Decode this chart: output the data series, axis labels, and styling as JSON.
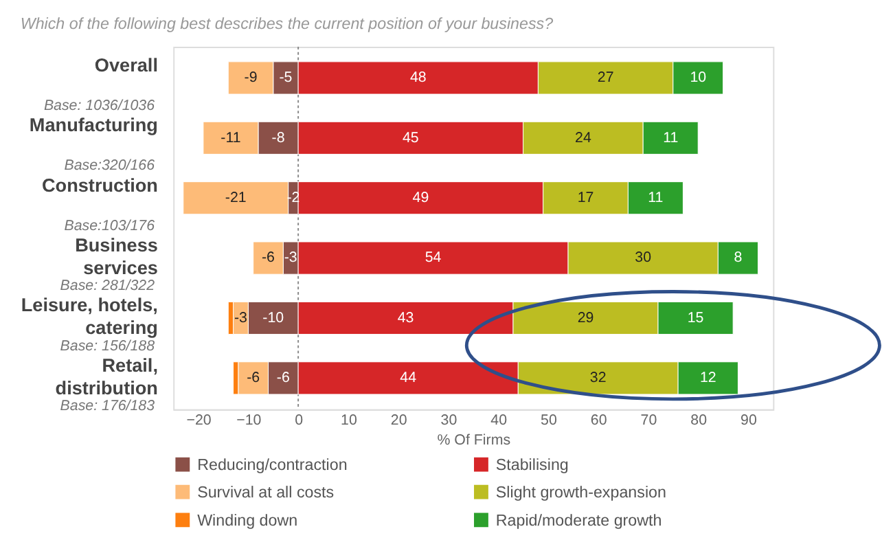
{
  "chart_data": {
    "type": "bar",
    "orientation": "horizontal",
    "stacked": true,
    "title": "Which of the following best describes the current position of your business?",
    "xlabel": "% Of Firms",
    "categories": [
      "Overall",
      "Manufacturing",
      "Construction",
      "Business services",
      "Leisure, hotels, catering",
      "Retail, distribution"
    ],
    "series": [
      {
        "name": "Reducing/contraction",
        "color": "#8b5048",
        "values": [
          -5,
          -8,
          -2,
          -3,
          -10,
          -6
        ],
        "value_labels": [
          "-5",
          "-8",
          "-2",
          "-3",
          "-10",
          "-6"
        ]
      },
      {
        "name": "Survival at all costs",
        "color": "#fdbb78",
        "values": [
          -9,
          -11,
          -21,
          -6,
          -3,
          -6
        ],
        "value_labels": [
          "-9",
          "-11",
          "-21",
          "-6",
          "-3",
          "-6"
        ]
      },
      {
        "name": "Winding down",
        "color": "#fd7f10",
        "values": [
          null,
          null,
          null,
          null,
          -1,
          -1
        ]
      },
      {
        "name": "Stabilising",
        "color": "#d62628",
        "values": [
          48,
          45,
          49,
          54,
          43,
          44
        ],
        "value_labels": [
          "48",
          "45",
          "49",
          "54",
          "43",
          "44"
        ]
      },
      {
        "name": "Slight growth-expansion",
        "color": "#bcbd22",
        "values": [
          27,
          24,
          17,
          30,
          29,
          32
        ],
        "value_labels": [
          "27",
          "24",
          "17",
          "30",
          "29",
          "32"
        ]
      },
      {
        "name": "Rapid/moderate growth",
        "color": "#2ca02c",
        "values": [
          10,
          11,
          11,
          8,
          15,
          12
        ],
        "value_labels": [
          "10",
          "11",
          "11",
          "8",
          "15",
          "12"
        ]
      }
    ],
    "xlim": [
      -25,
      95
    ],
    "xticks": [
      -20,
      -10,
      0,
      10,
      20,
      30,
      40,
      50,
      60,
      70,
      80,
      90
    ],
    "ref_lines": [
      {
        "axis": "x",
        "value": 0,
        "color": "#888888",
        "line_style": "dotted"
      }
    ],
    "legend": "bottom",
    "annotations": [
      "Base: 1036/1036",
      "Base:320/166",
      "Base:103/176",
      "Base: 281/322",
      "Base: 156/188",
      "Base: 176/183"
    ]
  }
}
